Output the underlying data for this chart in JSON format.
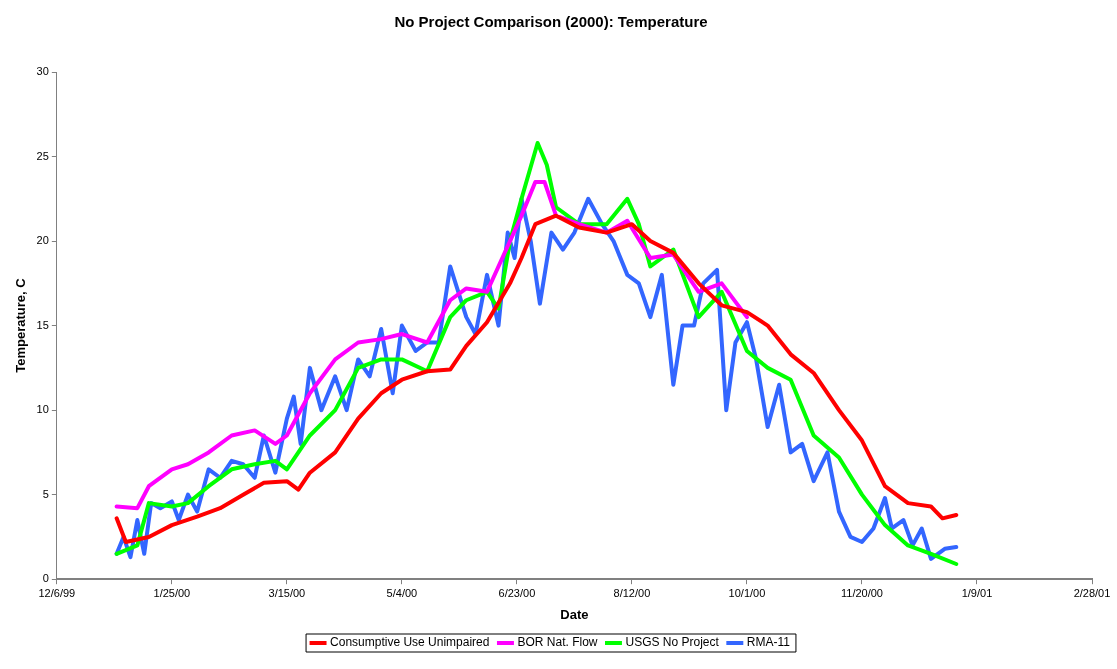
{
  "chart_data": {
    "type": "line",
    "title": "No Project Comparison (2000): Temperature",
    "xlabel": "Date",
    "ylabel": "Temperature, C",
    "xlim": [
      "1999-12-06",
      "2001-02-28"
    ],
    "xticks": [
      {
        "value": "1999-12-06",
        "label": "12/6/99"
      },
      {
        "value": "2000-01-25",
        "label": "1/25/00"
      },
      {
        "value": "2000-03-15",
        "label": "3/15/00"
      },
      {
        "value": "2000-05-04",
        "label": "5/4/00"
      },
      {
        "value": "2000-06-23",
        "label": "6/23/00"
      },
      {
        "value": "2000-08-12",
        "label": "8/12/00"
      },
      {
        "value": "2000-10-01",
        "label": "10/1/00"
      },
      {
        "value": "2000-11-20",
        "label": "11/20/00"
      },
      {
        "value": "2001-01-09",
        "label": "1/9/01"
      },
      {
        "value": "2001-02-28",
        "label": "2/28/01"
      }
    ],
    "ylim": [
      0,
      30
    ],
    "yticks": [
      0,
      5,
      10,
      15,
      20,
      25,
      30
    ],
    "grid": false,
    "legend": "bottom",
    "marker": "none",
    "line_style": "solid",
    "series": [
      {
        "name": "Consumptive Use Unimpaired",
        "color": "#ff0000",
        "x": [
          "2000-01-01",
          "2000-01-05",
          "2000-01-15",
          "2000-01-25",
          "2000-02-05",
          "2000-02-15",
          "2000-02-25",
          "2000-03-05",
          "2000-03-15",
          "2000-03-20",
          "2000-03-25",
          "2000-04-05",
          "2000-04-15",
          "2000-04-25",
          "2000-05-04",
          "2000-05-15",
          "2000-05-25",
          "2000-06-01",
          "2000-06-10",
          "2000-06-20",
          "2000-06-25",
          "2000-07-01",
          "2000-07-10",
          "2000-07-20",
          "2000-08-01",
          "2000-08-12",
          "2000-08-20",
          "2000-08-30",
          "2000-09-10",
          "2000-09-20",
          "2000-10-01",
          "2000-10-10",
          "2000-10-20",
          "2000-10-30",
          "2000-11-10",
          "2000-11-20",
          "2000-11-30",
          "2000-12-10",
          "2000-12-20",
          "2000-12-25",
          "2000-12-31"
        ],
        "values": [
          3.6,
          2.2,
          2.5,
          3.2,
          3.7,
          4.2,
          5.0,
          5.7,
          5.8,
          5.3,
          6.3,
          7.5,
          9.5,
          11.0,
          11.8,
          12.3,
          12.4,
          13.8,
          15.2,
          17.5,
          19.0,
          21.0,
          21.5,
          20.8,
          20.5,
          21.0,
          20.0,
          19.3,
          17.5,
          16.2,
          15.8,
          15.0,
          13.3,
          12.2,
          10.0,
          8.2,
          5.5,
          4.5,
          4.3,
          3.6,
          3.8
        ]
      },
      {
        "name": "BOR Nat. Flow",
        "color": "#ff00ff",
        "x": [
          "2000-01-01",
          "2000-01-10",
          "2000-01-15",
          "2000-01-25",
          "2000-02-01",
          "2000-02-10",
          "2000-02-20",
          "2000-03-01",
          "2000-03-10",
          "2000-03-15",
          "2000-03-25",
          "2000-04-05",
          "2000-04-15",
          "2000-04-25",
          "2000-05-04",
          "2000-05-15",
          "2000-05-25",
          "2000-06-01",
          "2000-06-10",
          "2000-06-20",
          "2000-06-25",
          "2000-07-01",
          "2000-07-05",
          "2000-07-10",
          "2000-07-20",
          "2000-08-01",
          "2000-08-10",
          "2000-08-20",
          "2000-08-30",
          "2000-09-10",
          "2000-09-20",
          "2000-10-01"
        ],
        "values": [
          4.3,
          4.2,
          5.5,
          6.5,
          6.8,
          7.5,
          8.5,
          8.8,
          8.0,
          8.5,
          11.0,
          13.0,
          14.0,
          14.2,
          14.5,
          14.0,
          16.5,
          17.2,
          17.0,
          20.0,
          21.5,
          23.5,
          23.5,
          21.5,
          21.0,
          20.5,
          21.2,
          19.0,
          19.2,
          17.0,
          17.5,
          15.5
        ]
      },
      {
        "name": "USGS No Project",
        "color": "#00ff00",
        "x": [
          "2000-01-01",
          "2000-01-10",
          "2000-01-15",
          "2000-01-25",
          "2000-02-01",
          "2000-02-10",
          "2000-02-20",
          "2000-03-01",
          "2000-03-10",
          "2000-03-15",
          "2000-03-25",
          "2000-04-05",
          "2000-04-15",
          "2000-04-25",
          "2000-05-04",
          "2000-05-15",
          "2000-05-25",
          "2000-06-01",
          "2000-06-10",
          "2000-06-15",
          "2000-06-20",
          "2000-06-25",
          "2000-07-02",
          "2000-07-06",
          "2000-07-10",
          "2000-07-20",
          "2000-08-01",
          "2000-08-10",
          "2000-08-15",
          "2000-08-20",
          "2000-08-30",
          "2000-09-10",
          "2000-09-20",
          "2000-10-01",
          "2000-10-10",
          "2000-10-20",
          "2000-10-30",
          "2000-11-10",
          "2000-11-20",
          "2000-11-30",
          "2000-12-10",
          "2000-12-20",
          "2000-12-31"
        ],
        "values": [
          1.5,
          2.0,
          4.5,
          4.3,
          4.5,
          5.5,
          6.5,
          6.8,
          7.0,
          6.5,
          8.5,
          10.0,
          12.5,
          13.0,
          13.0,
          12.3,
          15.5,
          16.5,
          17.0,
          16.0,
          20.0,
          22.5,
          25.8,
          24.5,
          22.0,
          21.0,
          21.0,
          22.5,
          21.0,
          18.5,
          19.5,
          15.5,
          17.0,
          13.5,
          12.5,
          11.8,
          8.5,
          7.2,
          5.0,
          3.2,
          2.0,
          1.5,
          0.9
        ]
      },
      {
        "name": "RMA-11",
        "color": "#3366ff",
        "x": [
          "2000-01-01",
          "2000-01-04",
          "2000-01-07",
          "2000-01-10",
          "2000-01-13",
          "2000-01-16",
          "2000-01-20",
          "2000-01-25",
          "2000-01-28",
          "2000-02-01",
          "2000-02-05",
          "2000-02-10",
          "2000-02-15",
          "2000-02-20",
          "2000-02-25",
          "2000-03-01",
          "2000-03-05",
          "2000-03-10",
          "2000-03-15",
          "2000-03-18",
          "2000-03-21",
          "2000-03-25",
          "2000-03-30",
          "2000-04-05",
          "2000-04-10",
          "2000-04-15",
          "2000-04-20",
          "2000-04-25",
          "2000-04-30",
          "2000-05-04",
          "2000-05-10",
          "2000-05-15",
          "2000-05-20",
          "2000-05-25",
          "2000-06-01",
          "2000-06-05",
          "2000-06-10",
          "2000-06-15",
          "2000-06-19",
          "2000-06-22",
          "2000-06-25",
          "2000-06-29",
          "2000-07-03",
          "2000-07-08",
          "2000-07-13",
          "2000-07-18",
          "2000-07-24",
          "2000-07-30",
          "2000-08-04",
          "2000-08-10",
          "2000-08-15",
          "2000-08-20",
          "2000-08-25",
          "2000-08-30",
          "2000-09-03",
          "2000-09-08",
          "2000-09-12",
          "2000-09-18",
          "2000-09-22",
          "2000-09-26",
          "2000-10-01",
          "2000-10-05",
          "2000-10-10",
          "2000-10-15",
          "2000-10-20",
          "2000-10-25",
          "2000-10-30",
          "2000-11-05",
          "2000-11-10",
          "2000-11-15",
          "2000-11-20",
          "2000-11-25",
          "2000-11-30",
          "2000-12-03",
          "2000-12-08",
          "2000-12-12",
          "2000-12-16",
          "2000-12-20",
          "2000-12-23",
          "2000-12-26",
          "2000-12-31"
        ],
        "values": [
          1.5,
          2.5,
          1.3,
          3.5,
          1.5,
          4.5,
          4.2,
          4.6,
          3.5,
          5.0,
          4.0,
          6.5,
          6.0,
          7.0,
          6.8,
          6.0,
          8.5,
          6.3,
          9.5,
          10.8,
          8.0,
          12.5,
          10.0,
          12.0,
          10.0,
          13.0,
          12.0,
          14.8,
          11.0,
          15.0,
          13.5,
          14.0,
          14.0,
          18.5,
          15.5,
          14.5,
          18.0,
          15.0,
          20.5,
          19.0,
          22.5,
          20.0,
          16.3,
          20.5,
          19.5,
          20.5,
          22.5,
          21.0,
          20.0,
          18.0,
          17.5,
          15.5,
          18.0,
          11.5,
          15.0,
          15.0,
          17.5,
          18.3,
          10.0,
          14.0,
          15.2,
          13.0,
          9.0,
          11.5,
          7.5,
          8.0,
          5.8,
          7.5,
          4.0,
          2.5,
          2.2,
          3.0,
          4.8,
          3.0,
          3.5,
          2.0,
          3.0,
          1.2,
          1.5,
          1.8,
          1.9
        ]
      }
    ]
  }
}
